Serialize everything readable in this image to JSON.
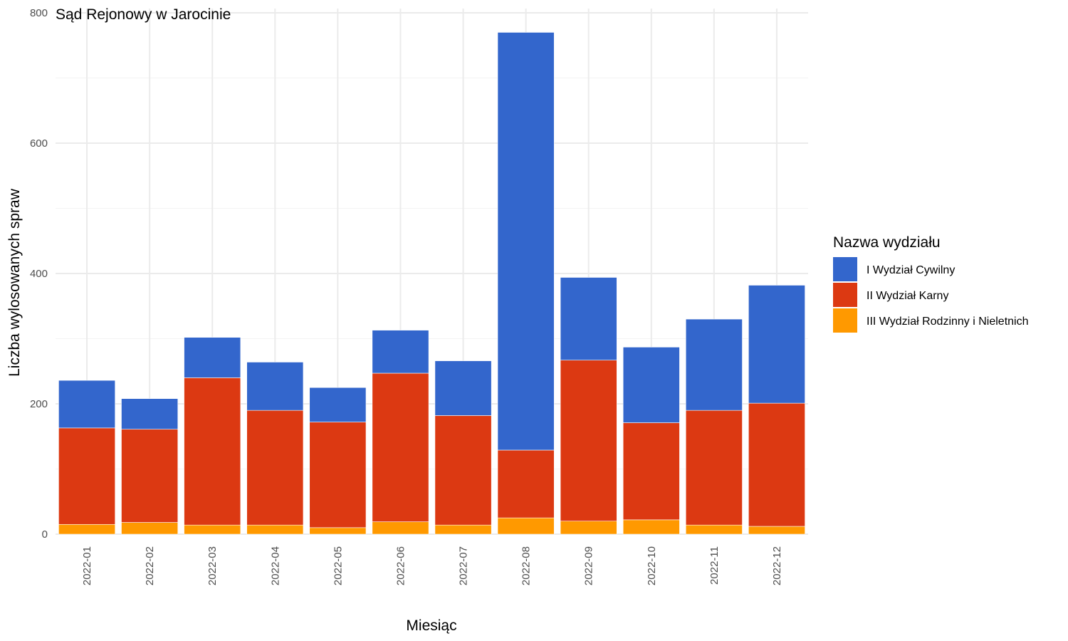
{
  "chart_data": {
    "type": "bar",
    "stacked": true,
    "title": "Sąd Rejonowy w Jarocinie",
    "xlabel": "Miesiąc",
    "ylabel": "Liczba wylosowanych spraw",
    "ylim": [
      0,
      800
    ],
    "yticks": [
      0,
      200,
      400,
      600,
      800
    ],
    "grid": true,
    "legend_title": "Nazwa wydziału",
    "legend_position": "right",
    "categories": [
      "2022-01",
      "2022-02",
      "2022-03",
      "2022-04",
      "2022-05",
      "2022-06",
      "2022-07",
      "2022-08",
      "2022-09",
      "2022-10",
      "2022-11",
      "2022-12"
    ],
    "series": [
      {
        "name": "III Wydział Rodzinny i Nieletnich",
        "color": "#FF9900",
        "values": [
          15,
          18,
          14,
          14,
          10,
          19,
          14,
          25,
          20,
          22,
          14,
          12
        ]
      },
      {
        "name": "II Wydział Karny",
        "color": "#DC3912",
        "values": [
          148,
          143,
          226,
          176,
          162,
          228,
          168,
          104,
          247,
          149,
          176,
          189
        ]
      },
      {
        "name": "I Wydział Cywilny",
        "color": "#3366CC",
        "values": [
          73,
          47,
          62,
          74,
          53,
          66,
          84,
          641,
          127,
          116,
          140,
          181
        ]
      }
    ],
    "legend_order": [
      "I Wydział Cywilny",
      "II Wydział Karny",
      "III Wydział Rodzinny i Nieletnich"
    ]
  }
}
